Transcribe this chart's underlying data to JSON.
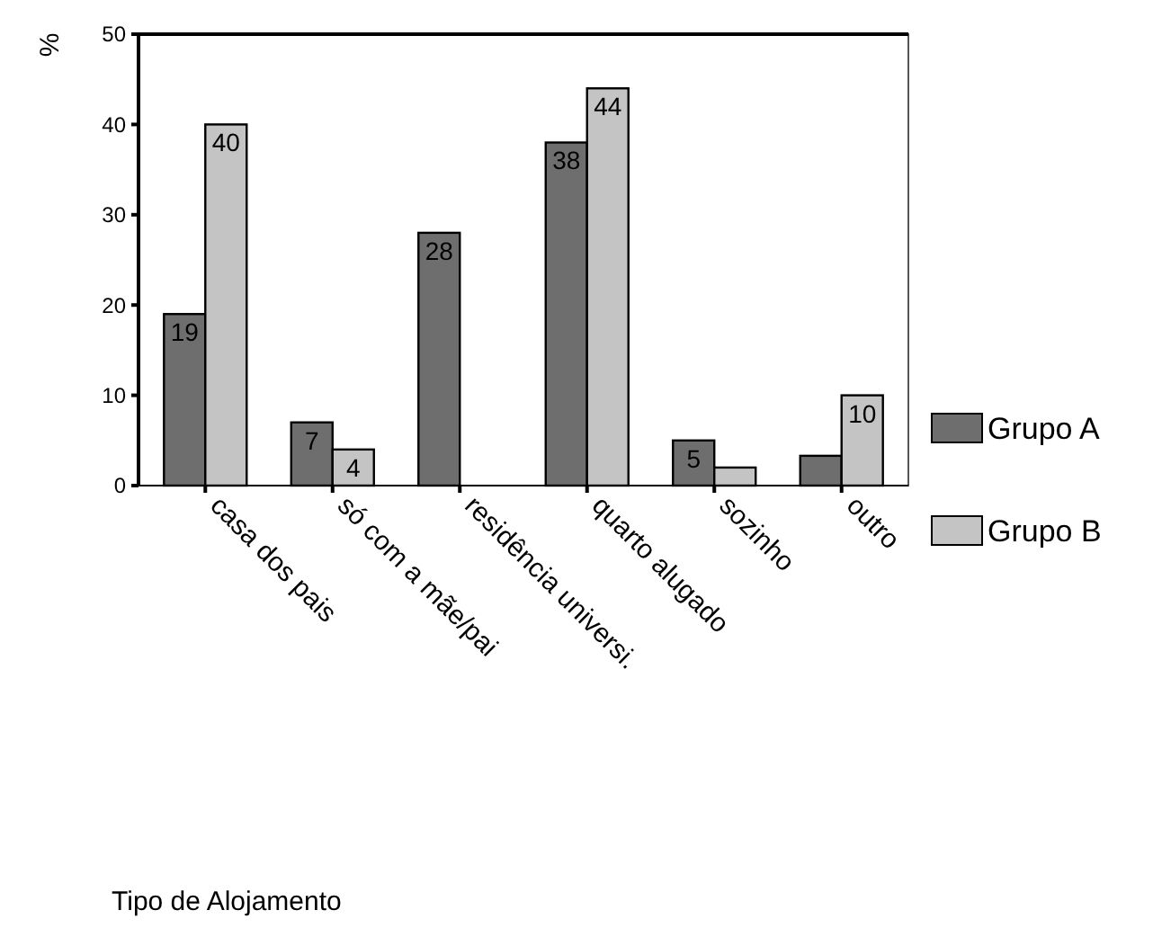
{
  "chart_data": {
    "type": "bar",
    "ylabel": "%",
    "annotations": [
      "Tipo de Alojamento"
    ],
    "categories": [
      "casa dos pais",
      "só com a mãe/pai",
      "residência universi.",
      "quarto alugado",
      "sozinho",
      "outro"
    ],
    "series": [
      {
        "name": "Grupo A",
        "color": "#6e6e6e",
        "values": [
          19,
          7,
          28,
          38,
          5,
          3.3
        ],
        "value_labels": [
          "19",
          "7",
          "28",
          "38",
          "5",
          null
        ]
      },
      {
        "name": "Grupo B",
        "color": "#c4c4c4",
        "values": [
          40,
          4,
          null,
          44,
          2,
          10
        ],
        "value_labels": [
          "40",
          "4",
          null,
          "44",
          null,
          "10"
        ]
      }
    ],
    "ylim": [
      0,
      50
    ],
    "yticks": [
      0,
      10,
      20,
      30,
      40,
      50
    ],
    "grid": false,
    "legend": "right"
  }
}
